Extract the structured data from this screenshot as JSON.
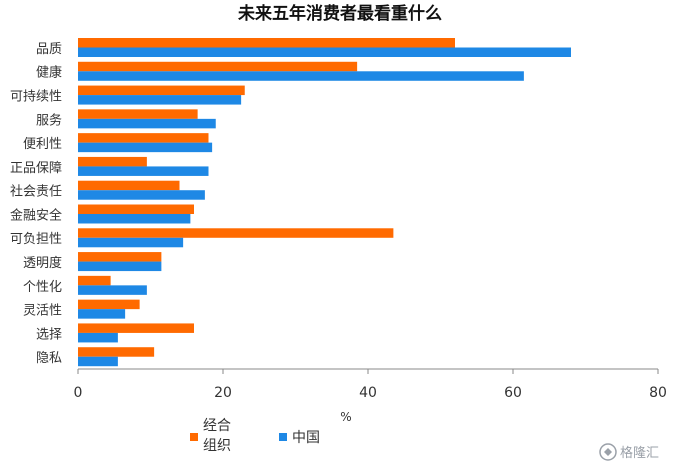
{
  "chart_data": {
    "type": "bar",
    "orientation": "horizontal",
    "title": "未来五年消费者最看重什么",
    "categories": [
      "品质",
      "健康",
      "可持续性",
      "服务",
      "便利性",
      "正品保障",
      "社会责任",
      "金融安全",
      "可负担性",
      "透明度",
      "个性化",
      "灵活性",
      "选择",
      "隐私"
    ],
    "series": [
      {
        "name": "经合组织",
        "color": "#ff6a00",
        "values": [
          52,
          38.5,
          23,
          16.5,
          18,
          9.5,
          14,
          16,
          43.5,
          11.5,
          4.5,
          8.5,
          16,
          10.5
        ]
      },
      {
        "name": "中国",
        "color": "#1e88e5",
        "values": [
          68,
          61.5,
          22.5,
          19,
          18.5,
          18,
          17.5,
          15.5,
          14.5,
          11.5,
          9.5,
          6.5,
          5.5,
          5.5
        ]
      }
    ],
    "xlim": [
      0,
      80
    ],
    "xticks": [
      0,
      20,
      40,
      60,
      80
    ],
    "xlabel": "%",
    "grid": false,
    "legend_position": "bottom"
  },
  "legend": {
    "oecd_label_line1": "经合",
    "oecd_label_line2": "组织",
    "china_label": "中国"
  },
  "watermark": {
    "text": "格隆汇"
  }
}
